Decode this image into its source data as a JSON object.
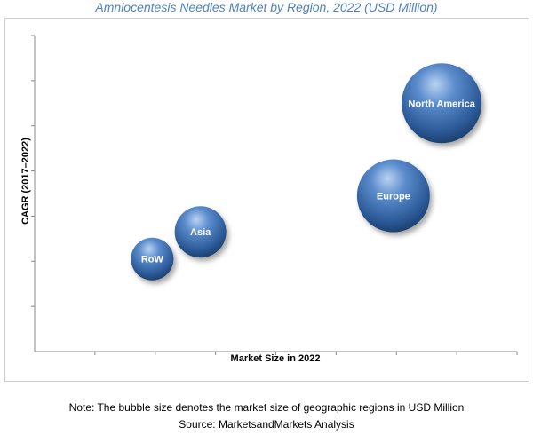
{
  "chart_data": {
    "type": "bubble",
    "title": "Amniocentesis Needles Market by Region, 2022 (USD Million)",
    "xlabel": "Market Size in 2022",
    "ylabel": "CAGR (2017–2022)",
    "x_axis_ticks": 8,
    "y_axis_ticks": 7,
    "grid": false,
    "bubble_color": "#3d6fb0",
    "points": [
      {
        "label": "RoW",
        "x": 1.95,
        "y": 2.05,
        "size": 24
      },
      {
        "label": "Asia",
        "x": 2.75,
        "y": 2.65,
        "size": 29
      },
      {
        "label": "Europe",
        "x": 5.95,
        "y": 3.45,
        "size": 41
      },
      {
        "label": "North America",
        "x": 6.75,
        "y": 5.5,
        "size": 45
      }
    ],
    "xlim": [
      0,
      8
    ],
    "ylim": [
      0,
      7
    ]
  },
  "notes": {
    "line1": "Note: The bubble size denotes the market size of geographic regions in USD Million",
    "line2": "Source: MarketsandMarkets Analysis"
  }
}
